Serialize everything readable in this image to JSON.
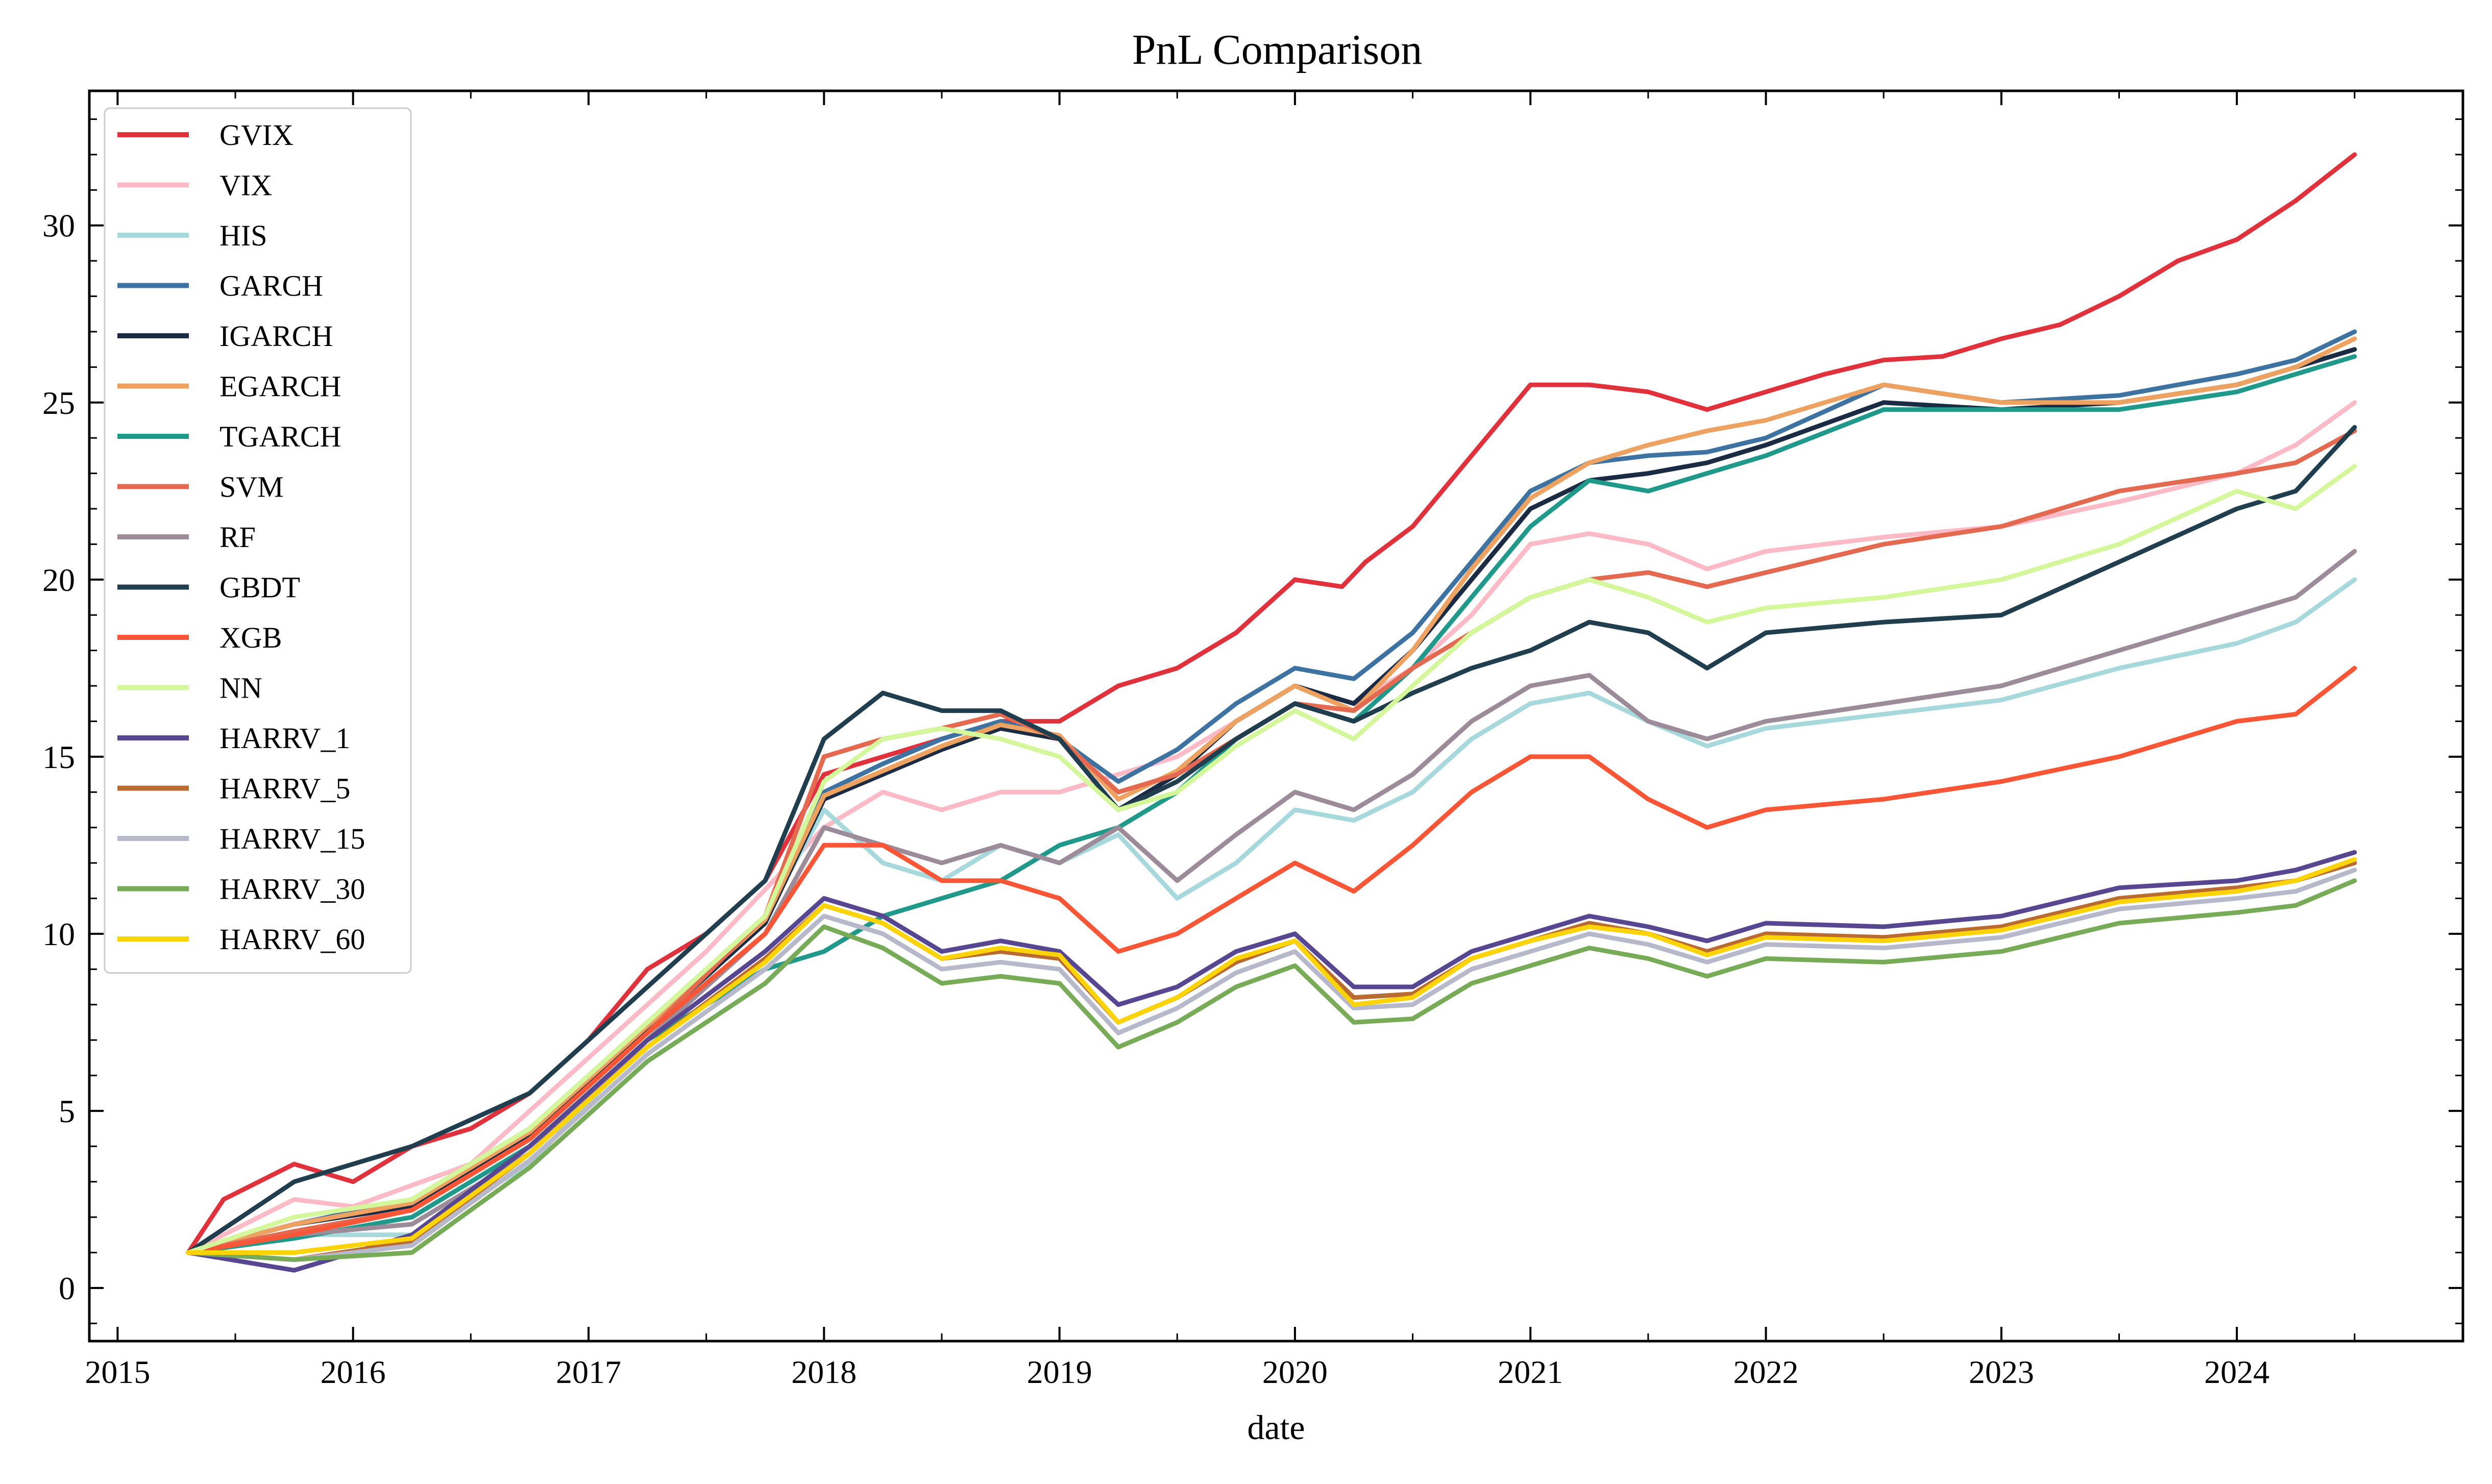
{
  "chart_data": {
    "type": "line",
    "title": "PnL Comparison",
    "xlabel": "date",
    "ylabel": "",
    "xlim": [
      2014.88,
      2024.96
    ],
    "ylim": [
      -1.5,
      33.8
    ],
    "grid": false,
    "legend_position": "top-left",
    "x_ticks": [
      2015,
      2016,
      2017,
      2018,
      2019,
      2020,
      2021,
      2022,
      2023,
      2024
    ],
    "x_tick_labels": [
      "2015",
      "2016",
      "2017",
      "2018",
      "2019",
      "2020",
      "2021",
      "2022",
      "2023",
      "2024"
    ],
    "y_ticks": [
      0,
      5,
      10,
      15,
      20,
      25,
      30
    ],
    "y_tick_labels": [
      "0",
      "5",
      "10",
      "15",
      "20",
      "25",
      "30"
    ],
    "series": [
      {
        "name": "GVIX",
        "color": "#e0323c",
        "x": [
          2015.3,
          2015.45,
          2015.75,
          2016.0,
          2016.25,
          2016.5,
          2016.75,
          2017.0,
          2017.25,
          2017.5,
          2017.75,
          2018.0,
          2018.25,
          2018.5,
          2018.75,
          2019.0,
          2019.25,
          2019.5,
          2019.75,
          2020.0,
          2020.2,
          2020.3,
          2020.5,
          2020.75,
          2021.0,
          2021.25,
          2021.5,
          2021.75,
          2022.0,
          2022.25,
          2022.5,
          2022.75,
          2023.0,
          2023.25,
          2023.5,
          2023.75,
          2024.0,
          2024.25,
          2024.5
        ],
        "y": [
          1.0,
          2.5,
          3.5,
          3.0,
          4.0,
          4.5,
          5.5,
          7.0,
          9.0,
          10.0,
          11.5,
          14.5,
          15.0,
          15.5,
          16.0,
          16.0,
          17.0,
          17.5,
          18.5,
          20.0,
          19.8,
          20.5,
          21.5,
          23.5,
          25.5,
          25.5,
          25.3,
          24.8,
          25.3,
          25.8,
          26.2,
          26.3,
          26.8,
          27.2,
          28.0,
          29.0,
          29.6,
          30.7,
          32.0
        ]
      },
      {
        "name": "VIX",
        "color": "#fcb9c6",
        "x": [
          2015.3,
          2015.75,
          2016.0,
          2016.5,
          2017.0,
          2017.5,
          2018.0,
          2018.25,
          2018.5,
          2018.75,
          2019.0,
          2019.25,
          2019.5,
          2019.75,
          2020.0,
          2020.25,
          2020.5,
          2020.75,
          2021.0,
          2021.25,
          2021.5,
          2021.75,
          2022.0,
          2022.5,
          2023.0,
          2023.5,
          2024.0,
          2024.25,
          2024.5
        ],
        "y": [
          1.0,
          2.5,
          2.3,
          3.5,
          6.5,
          9.5,
          13.0,
          14.0,
          13.5,
          14.0,
          14.0,
          14.5,
          15.0,
          16.0,
          17.0,
          16.5,
          17.5,
          19.0,
          21.0,
          21.3,
          21.0,
          20.3,
          20.8,
          21.2,
          21.5,
          22.2,
          23.0,
          23.8,
          25.0
        ]
      },
      {
        "name": "HIS",
        "color": "#a6d8dc",
        "x": [
          2015.3,
          2015.75,
          2016.25,
          2016.75,
          2017.25,
          2017.75,
          2018.0,
          2018.25,
          2018.5,
          2018.75,
          2019.0,
          2019.25,
          2019.5,
          2019.75,
          2020.0,
          2020.25,
          2020.5,
          2020.75,
          2021.0,
          2021.25,
          2021.5,
          2021.75,
          2022.0,
          2022.5,
          2023.0,
          2023.5,
          2024.0,
          2024.25,
          2024.5
        ],
        "y": [
          1.0,
          1.5,
          1.5,
          3.5,
          7.0,
          10.5,
          13.5,
          12.0,
          11.5,
          12.5,
          12.0,
          12.8,
          11.0,
          12.0,
          13.5,
          13.2,
          14.0,
          15.5,
          16.5,
          16.8,
          16.0,
          15.3,
          15.8,
          16.2,
          16.6,
          17.5,
          18.2,
          18.8,
          20.0
        ]
      },
      {
        "name": "GARCH",
        "color": "#3e73a1",
        "x": [
          2015.3,
          2015.75,
          2016.25,
          2016.75,
          2017.25,
          2017.75,
          2018.0,
          2018.25,
          2018.5,
          2018.75,
          2019.0,
          2019.25,
          2019.5,
          2019.75,
          2020.0,
          2020.25,
          2020.5,
          2020.75,
          2021.0,
          2021.25,
          2021.5,
          2021.75,
          2022.0,
          2022.5,
          2023.0,
          2023.5,
          2024.0,
          2024.25,
          2024.5
        ],
        "y": [
          1.0,
          1.8,
          2.5,
          4.5,
          7.5,
          10.5,
          14.0,
          14.8,
          15.5,
          16.0,
          15.5,
          14.3,
          15.2,
          16.5,
          17.5,
          17.2,
          18.5,
          20.5,
          22.5,
          23.3,
          23.5,
          23.6,
          24.0,
          25.5,
          25.0,
          25.2,
          25.8,
          26.2,
          27.0
        ]
      },
      {
        "name": "IGARCH",
        "color": "#1c2b44",
        "x": [
          2015.3,
          2015.75,
          2016.25,
          2016.75,
          2017.25,
          2017.75,
          2018.0,
          2018.25,
          2018.5,
          2018.75,
          2019.0,
          2019.25,
          2019.5,
          2019.75,
          2020.0,
          2020.25,
          2020.5,
          2020.75,
          2021.0,
          2021.25,
          2021.5,
          2021.75,
          2022.0,
          2022.5,
          2023.0,
          2023.5,
          2024.0,
          2024.25,
          2024.5
        ],
        "y": [
          1.0,
          1.8,
          2.3,
          4.3,
          7.3,
          10.3,
          13.8,
          14.5,
          15.2,
          15.8,
          15.5,
          13.5,
          14.5,
          16.0,
          17.0,
          16.5,
          18.0,
          20.0,
          22.0,
          22.8,
          23.0,
          23.3,
          23.8,
          25.0,
          24.8,
          25.0,
          25.5,
          26.0,
          26.5
        ]
      },
      {
        "name": "EGARCH",
        "color": "#eda262",
        "x": [
          2015.3,
          2015.75,
          2016.25,
          2016.75,
          2017.25,
          2017.75,
          2018.0,
          2018.25,
          2018.5,
          2018.75,
          2019.0,
          2019.25,
          2019.5,
          2019.75,
          2020.0,
          2020.25,
          2020.5,
          2020.75,
          2021.0,
          2021.25,
          2021.5,
          2021.75,
          2022.0,
          2022.5,
          2023.0,
          2023.5,
          2024.0,
          2024.25,
          2024.5
        ],
        "y": [
          1.0,
          1.8,
          2.4,
          4.4,
          7.4,
          10.4,
          13.9,
          14.6,
          15.3,
          15.9,
          15.6,
          13.8,
          14.6,
          16.0,
          17.0,
          16.3,
          18.0,
          20.3,
          22.3,
          23.3,
          23.8,
          24.2,
          24.5,
          25.5,
          25.0,
          25.0,
          25.5,
          26.0,
          26.8
        ]
      },
      {
        "name": "TGARCH",
        "color": "#21998a",
        "x": [
          2015.3,
          2015.75,
          2016.25,
          2016.75,
          2017.25,
          2017.75,
          2018.0,
          2018.25,
          2018.5,
          2018.75,
          2019.0,
          2019.25,
          2019.5,
          2019.75,
          2020.0,
          2020.25,
          2020.5,
          2020.75,
          2021.0,
          2021.25,
          2021.5,
          2021.75,
          2022.0,
          2022.5,
          2023.0,
          2023.5,
          2024.0,
          2024.25,
          2024.5
        ],
        "y": [
          1.0,
          1.4,
          2.0,
          4.0,
          7.0,
          9.0,
          9.5,
          10.5,
          11.0,
          11.5,
          12.5,
          13.0,
          14.0,
          15.5,
          16.5,
          16.0,
          17.5,
          19.5,
          21.5,
          22.8,
          22.5,
          23.0,
          23.5,
          24.8,
          24.8,
          24.8,
          25.3,
          25.8,
          26.3
        ]
      },
      {
        "name": "SVM",
        "color": "#e36a50",
        "x": [
          2015.3,
          2015.75,
          2016.25,
          2016.75,
          2017.25,
          2017.75,
          2018.0,
          2018.25,
          2018.5,
          2018.75,
          2019.0,
          2019.25,
          2019.5,
          2019.75,
          2020.0,
          2020.25,
          2020.5,
          2020.75,
          2021.0,
          2021.25,
          2021.5,
          2021.75,
          2022.0,
          2022.5,
          2023.0,
          2023.5,
          2024.0,
          2024.25,
          2024.5
        ],
        "y": [
          1.0,
          1.6,
          2.2,
          4.2,
          7.2,
          10.5,
          15.0,
          15.5,
          15.8,
          16.2,
          15.5,
          14.0,
          14.5,
          15.5,
          16.5,
          16.3,
          17.5,
          18.5,
          19.5,
          20.0,
          20.2,
          19.8,
          20.2,
          21.0,
          21.5,
          22.5,
          23.0,
          23.3,
          24.2
        ]
      },
      {
        "name": "RF",
        "color": "#9c8b98",
        "x": [
          2015.3,
          2015.75,
          2016.25,
          2016.75,
          2017.25,
          2017.75,
          2018.0,
          2018.25,
          2018.5,
          2018.75,
          2019.0,
          2019.25,
          2019.5,
          2019.75,
          2020.0,
          2020.25,
          2020.5,
          2020.75,
          2021.0,
          2021.25,
          2021.5,
          2021.75,
          2022.0,
          2022.5,
          2023.0,
          2023.5,
          2024.0,
          2024.25,
          2024.5
        ],
        "y": [
          1.0,
          1.5,
          1.8,
          3.8,
          7.0,
          10.0,
          13.0,
          12.5,
          12.0,
          12.5,
          12.0,
          13.0,
          11.5,
          12.8,
          14.0,
          13.5,
          14.5,
          16.0,
          17.0,
          17.3,
          16.0,
          15.5,
          16.0,
          16.5,
          17.0,
          18.0,
          19.0,
          19.5,
          20.8
        ]
      },
      {
        "name": "GBDT",
        "color": "#213e4e",
        "x": [
          2015.3,
          2015.75,
          2016.25,
          2016.75,
          2017.25,
          2017.75,
          2018.0,
          2018.25,
          2018.5,
          2018.75,
          2019.0,
          2019.25,
          2019.5,
          2019.75,
          2020.0,
          2020.25,
          2020.5,
          2020.75,
          2021.0,
          2021.25,
          2021.5,
          2021.75,
          2022.0,
          2022.5,
          2023.0,
          2023.5,
          2024.0,
          2024.25,
          2024.5
        ],
        "y": [
          1.0,
          3.0,
          4.0,
          5.5,
          8.5,
          11.5,
          15.5,
          16.8,
          16.3,
          16.3,
          15.5,
          13.5,
          14.3,
          15.5,
          16.5,
          16.0,
          16.8,
          17.5,
          18.0,
          18.8,
          18.5,
          17.5,
          18.5,
          18.8,
          19.0,
          20.5,
          22.0,
          22.5,
          24.3
        ]
      },
      {
        "name": "XGB",
        "color": "#f95637",
        "x": [
          2015.3,
          2015.75,
          2016.25,
          2016.75,
          2017.25,
          2017.75,
          2018.0,
          2018.25,
          2018.5,
          2018.75,
          2019.0,
          2019.25,
          2019.5,
          2019.75,
          2020.0,
          2020.25,
          2020.5,
          2020.75,
          2021.0,
          2021.25,
          2021.5,
          2021.75,
          2022.0,
          2022.5,
          2023.0,
          2023.5,
          2024.0,
          2024.25,
          2024.5
        ],
        "y": [
          1.0,
          1.5,
          2.2,
          4.2,
          7.2,
          10.0,
          12.5,
          12.5,
          11.5,
          11.5,
          11.0,
          9.5,
          10.0,
          11.0,
          12.0,
          11.2,
          12.5,
          14.0,
          15.0,
          15.0,
          13.8,
          13.0,
          13.5,
          13.8,
          14.3,
          15.0,
          16.0,
          16.2,
          17.5
        ]
      },
      {
        "name": "NN",
        "color": "#d4f79b",
        "x": [
          2015.3,
          2015.75,
          2016.25,
          2016.75,
          2017.25,
          2017.75,
          2018.0,
          2018.25,
          2018.5,
          2018.75,
          2019.0,
          2019.25,
          2019.5,
          2019.75,
          2020.0,
          2020.25,
          2020.5,
          2020.75,
          2021.0,
          2021.25,
          2021.5,
          2021.75,
          2022.0,
          2022.5,
          2023.0,
          2023.5,
          2024.0,
          2024.25,
          2024.5
        ],
        "y": [
          1.0,
          2.0,
          2.5,
          4.5,
          7.5,
          10.5,
          14.3,
          15.5,
          15.8,
          15.5,
          15.0,
          13.5,
          14.0,
          15.3,
          16.3,
          15.5,
          17.0,
          18.5,
          19.5,
          20.0,
          19.5,
          18.8,
          19.2,
          19.5,
          20.0,
          21.0,
          22.5,
          22.0,
          23.2
        ]
      },
      {
        "name": "HARRV_1",
        "color": "#574690",
        "x": [
          2015.3,
          2015.75,
          2016.25,
          2016.75,
          2017.25,
          2017.75,
          2018.0,
          2018.25,
          2018.5,
          2018.75,
          2019.0,
          2019.25,
          2019.5,
          2019.75,
          2020.0,
          2020.25,
          2020.5,
          2020.75,
          2021.0,
          2021.25,
          2021.5,
          2021.75,
          2022.0,
          2022.5,
          2023.0,
          2023.5,
          2024.0,
          2024.25,
          2024.5
        ],
        "y": [
          1.0,
          0.5,
          1.5,
          4.0,
          7.0,
          9.5,
          11.0,
          10.5,
          9.5,
          9.8,
          9.5,
          8.0,
          8.5,
          9.5,
          10.0,
          8.5,
          8.5,
          9.5,
          10.0,
          10.5,
          10.2,
          9.8,
          10.3,
          10.2,
          10.5,
          11.3,
          11.5,
          11.8,
          12.3
        ]
      },
      {
        "name": "HARRV_5",
        "color": "#ba6b31",
        "x": [
          2015.3,
          2015.75,
          2016.25,
          2016.75,
          2017.25,
          2017.75,
          2018.0,
          2018.25,
          2018.5,
          2018.75,
          2019.0,
          2019.25,
          2019.5,
          2019.75,
          2020.0,
          2020.25,
          2020.5,
          2020.75,
          2021.0,
          2021.25,
          2021.5,
          2021.75,
          2022.0,
          2022.5,
          2023.0,
          2023.5,
          2024.0,
          2024.25,
          2024.5
        ],
        "y": [
          1.0,
          0.8,
          1.3,
          3.8,
          6.8,
          9.3,
          10.8,
          10.3,
          9.3,
          9.5,
          9.3,
          7.5,
          8.2,
          9.2,
          9.8,
          8.2,
          8.3,
          9.3,
          9.8,
          10.3,
          10.0,
          9.5,
          10.0,
          9.9,
          10.2,
          11.0,
          11.3,
          11.5,
          12.0
        ]
      },
      {
        "name": "HARRV_15",
        "color": "#b7b8c9",
        "x": [
          2015.3,
          2015.75,
          2016.25,
          2016.75,
          2017.25,
          2017.75,
          2018.0,
          2018.25,
          2018.5,
          2018.75,
          2019.0,
          2019.25,
          2019.5,
          2019.75,
          2020.0,
          2020.25,
          2020.5,
          2020.75,
          2021.0,
          2021.25,
          2021.5,
          2021.75,
          2022.0,
          2022.5,
          2023.0,
          2023.5,
          2024.0,
          2024.25,
          2024.5
        ],
        "y": [
          1.0,
          0.8,
          1.2,
          3.6,
          6.6,
          9.0,
          10.5,
          10.0,
          9.0,
          9.2,
          9.0,
          7.2,
          7.9,
          8.9,
          9.5,
          7.9,
          8.0,
          9.0,
          9.5,
          10.0,
          9.7,
          9.2,
          9.7,
          9.6,
          9.9,
          10.7,
          11.0,
          11.2,
          11.8
        ]
      },
      {
        "name": "HARRV_30",
        "color": "#78ab58",
        "x": [
          2015.3,
          2015.75,
          2016.25,
          2016.75,
          2017.25,
          2017.75,
          2018.0,
          2018.25,
          2018.5,
          2018.75,
          2019.0,
          2019.25,
          2019.5,
          2019.75,
          2020.0,
          2020.25,
          2020.5,
          2020.75,
          2021.0,
          2021.25,
          2021.5,
          2021.75,
          2022.0,
          2022.5,
          2023.0,
          2023.5,
          2024.0,
          2024.25,
          2024.5
        ],
        "y": [
          1.0,
          0.8,
          1.0,
          3.4,
          6.4,
          8.6,
          10.2,
          9.6,
          8.6,
          8.8,
          8.6,
          6.8,
          7.5,
          8.5,
          9.1,
          7.5,
          7.6,
          8.6,
          9.1,
          9.6,
          9.3,
          8.8,
          9.3,
          9.2,
          9.5,
          10.3,
          10.6,
          10.8,
          11.5
        ]
      },
      {
        "name": "HARRV_60",
        "color": "#fcd406",
        "x": [
          2015.3,
          2015.75,
          2016.25,
          2016.75,
          2017.25,
          2017.75,
          2018.0,
          2018.25,
          2018.5,
          2018.75,
          2019.0,
          2019.25,
          2019.5,
          2019.75,
          2020.0,
          2020.25,
          2020.5,
          2020.75,
          2021.0,
          2021.25,
          2021.5,
          2021.75,
          2022.0,
          2022.5,
          2023.0,
          2023.5,
          2024.0,
          2024.25,
          2024.5
        ],
        "y": [
          1.0,
          1.0,
          1.4,
          3.8,
          6.8,
          9.2,
          10.8,
          10.3,
          9.3,
          9.6,
          9.4,
          7.5,
          8.2,
          9.3,
          9.8,
          8.0,
          8.2,
          9.3,
          9.8,
          10.2,
          10.0,
          9.4,
          9.9,
          9.8,
          10.1,
          10.9,
          11.2,
          11.5,
          12.1
        ]
      }
    ]
  }
}
